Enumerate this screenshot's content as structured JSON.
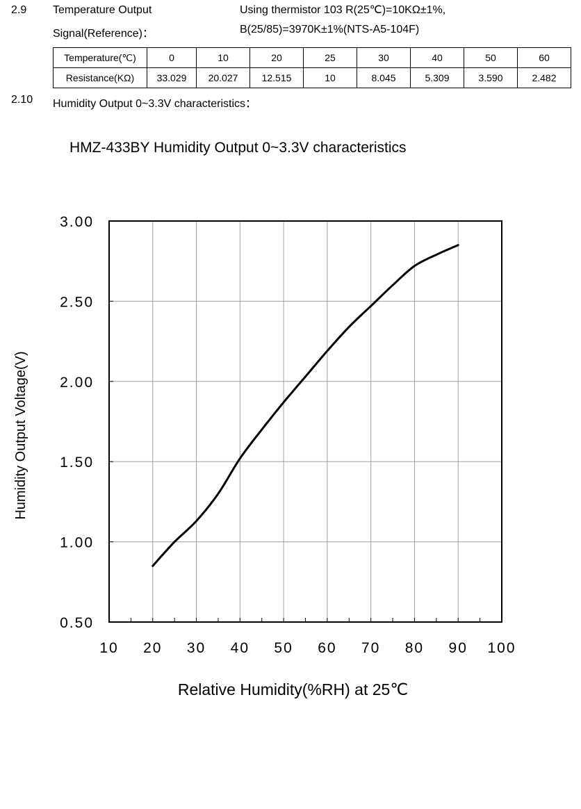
{
  "section_29": {
    "number": "2.9",
    "label_line1": "Temperature Output",
    "label_line2": "Signal(Reference)：",
    "desc_line1": "Using thermistor 103 R(25℃)=10KΩ±1%,",
    "desc_line2": "B(25/85)=3970K±1%(NTS-A5-104F)",
    "table": {
      "rows": [
        [
          "Temperature(℃)",
          "0",
          "10",
          "20",
          "25",
          "30",
          "40",
          "50",
          "60"
        ],
        [
          "Resistance(KΩ)",
          "33.029",
          "20.027",
          "12.515",
          "10",
          "8.045",
          "5.309",
          "3.590",
          "2.482"
        ]
      ]
    }
  },
  "section_210": {
    "number": "2.10",
    "label": "Humidity Output 0~3.3V characteristics："
  },
  "chart_data": {
    "type": "line",
    "title": "HMZ-433BY Humidity Output 0~3.3V characteristics",
    "xlabel": "Relative Humidity(%RH) at 25℃",
    "ylabel": "Humidity Output Voltage(V)",
    "xlim": [
      10,
      100
    ],
    "ylim": [
      0.5,
      3.0
    ],
    "xticks": [
      "10",
      "20",
      "30",
      "40",
      "50",
      "60",
      "70",
      "80",
      "90",
      "100"
    ],
    "yticks": [
      "0.50",
      "1.00",
      "1.50",
      "2.00",
      "2.50",
      "3.00"
    ],
    "grid": true,
    "line_color": "#000000",
    "grid_color": "#a0a0a0",
    "x": [
      20,
      25,
      30,
      35,
      40,
      45,
      50,
      55,
      60,
      65,
      70,
      75,
      80,
      85,
      90
    ],
    "y": [
      0.85,
      1.0,
      1.13,
      1.3,
      1.52,
      1.7,
      1.87,
      2.03,
      2.19,
      2.34,
      2.47,
      2.6,
      2.72,
      2.79,
      2.85
    ]
  }
}
